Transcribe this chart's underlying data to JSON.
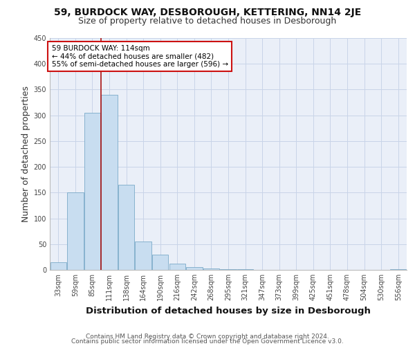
{
  "title_line1": "59, BURDOCK WAY, DESBOROUGH, KETTERING, NN14 2JE",
  "title_line2": "Size of property relative to detached houses in Desborough",
  "xlabel": "Distribution of detached houses by size in Desborough",
  "ylabel": "Number of detached properties",
  "bar_labels": [
    "33sqm",
    "59sqm",
    "85sqm",
    "111sqm",
    "138sqm",
    "164sqm",
    "190sqm",
    "216sqm",
    "242sqm",
    "268sqm",
    "295sqm",
    "321sqm",
    "347sqm",
    "373sqm",
    "399sqm",
    "425sqm",
    "451sqm",
    "478sqm",
    "504sqm",
    "530sqm",
    "556sqm"
  ],
  "bar_heights": [
    15,
    150,
    305,
    340,
    165,
    55,
    30,
    12,
    6,
    3,
    2,
    2,
    0,
    0,
    0,
    0,
    0,
    0,
    0,
    0,
    2
  ],
  "bar_color": "#c8ddf0",
  "bar_edge_color": "#7aaac8",
  "grid_color": "#c8d4e8",
  "background_color": "#eaeff8",
  "vline_x": 2.5,
  "vline_color": "#aa1111",
  "annotation_text": "59 BURDOCK WAY: 114sqm\n← 44% of detached houses are smaller (482)\n55% of semi-detached houses are larger (596) →",
  "annotation_box_color": "#ffffff",
  "annotation_box_edge_color": "#cc1111",
  "footer_line1": "Contains HM Land Registry data © Crown copyright and database right 2024.",
  "footer_line2": "Contains public sector information licensed under the Open Government Licence v3.0.",
  "ylim": [
    0,
    450
  ],
  "title_fontsize": 10,
  "subtitle_fontsize": 9,
  "axis_label_fontsize": 9,
  "tick_fontsize": 7,
  "footer_fontsize": 6.5,
  "annot_fontsize": 7.5
}
